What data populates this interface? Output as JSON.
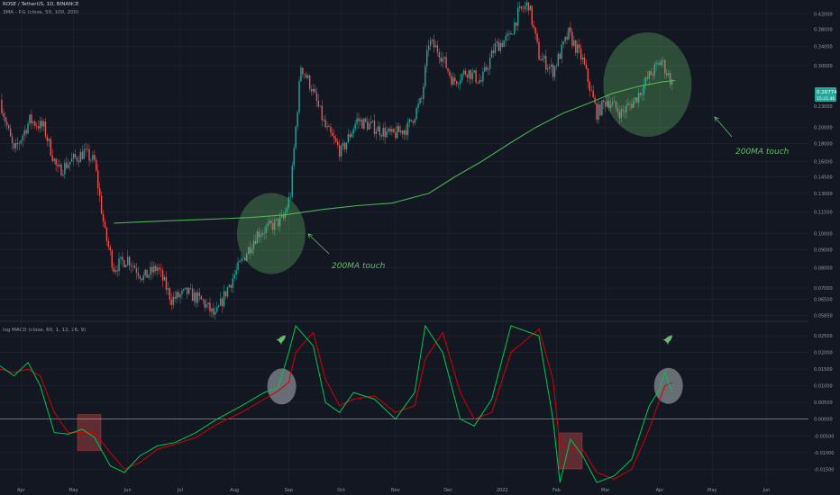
{
  "header": {
    "symbol": "ROSE / TetherUS, 1D, BINANCE",
    "ma_indicator": "3MA - RG (close, 50, 100, 200)",
    "macd_indicator": "log MACD (close, 60, 1, 12, 26, 9)",
    "currency": "USDT"
  },
  "price_tag": {
    "price": "0.26774",
    "countdown": "15:21:46"
  },
  "colors": {
    "background": "#131722",
    "bull": "#26a69a",
    "bear": "#ef5350",
    "ma200": "#4caf50",
    "highlight_green": "#66bb6a",
    "macd_line": "#00c853",
    "signal_line": "#d50000"
  },
  "annotations": [
    {
      "text": "200MA touch"
    },
    {
      "text": "200MA touch"
    }
  ],
  "chart_data": [
    {
      "type": "candlestick",
      "y_scale": "log",
      "y_ticks": [
        "0.42000",
        "0.38000",
        "0.34000",
        "0.30000",
        "0.23000",
        "0.20000",
        "0.18000",
        "0.16000",
        "0.14500",
        "0.13000",
        "0.11500",
        "0.10000",
        "0.09000",
        "0.08000",
        "0.07000",
        "0.06500",
        "0.05850"
      ],
      "x_ticks": [
        "Apr",
        "May",
        "Jun",
        "Jul",
        "Aug",
        "Sep",
        "Oct",
        "Nov",
        "Dec",
        "2022",
        "Feb",
        "Mar",
        "Apr",
        "May",
        "Jun"
      ],
      "price_path": [
        {
          "x": "2021-03-20",
          "y": 0.24
        },
        {
          "x": "2021-03-28",
          "y": 0.17
        },
        {
          "x": "2021-04-06",
          "y": 0.21
        },
        {
          "x": "2021-04-14",
          "y": 0.2
        },
        {
          "x": "2021-04-22",
          "y": 0.15
        },
        {
          "x": "2021-04-29",
          "y": 0.16
        },
        {
          "x": "2021-05-07",
          "y": 0.17
        },
        {
          "x": "2021-05-13",
          "y": 0.16
        },
        {
          "x": "2021-05-19",
          "y": 0.1
        },
        {
          "x": "2021-05-24",
          "y": 0.08
        },
        {
          "x": "2021-06-01",
          "y": 0.085
        },
        {
          "x": "2021-06-10",
          "y": 0.075
        },
        {
          "x": "2021-06-18",
          "y": 0.08
        },
        {
          "x": "2021-06-26",
          "y": 0.065
        },
        {
          "x": "2021-07-05",
          "y": 0.068
        },
        {
          "x": "2021-07-14",
          "y": 0.064
        },
        {
          "x": "2021-07-21",
          "y": 0.058
        },
        {
          "x": "2021-07-28",
          "y": 0.07
        },
        {
          "x": "2021-08-06",
          "y": 0.085
        },
        {
          "x": "2021-08-14",
          "y": 0.1
        },
        {
          "x": "2021-08-22",
          "y": 0.105
        },
        {
          "x": "2021-08-29",
          "y": 0.11
        },
        {
          "x": "2021-09-02",
          "y": 0.13
        },
        {
          "x": "2021-09-05",
          "y": 0.2
        },
        {
          "x": "2021-09-08",
          "y": 0.3
        },
        {
          "x": "2021-09-14",
          "y": 0.26
        },
        {
          "x": "2021-09-22",
          "y": 0.2
        },
        {
          "x": "2021-10-01",
          "y": 0.17
        },
        {
          "x": "2021-10-10",
          "y": 0.21
        },
        {
          "x": "2021-10-20",
          "y": 0.2
        },
        {
          "x": "2021-10-30",
          "y": 0.19
        },
        {
          "x": "2021-11-08",
          "y": 0.2
        },
        {
          "x": "2021-11-16",
          "y": 0.24
        },
        {
          "x": "2021-11-20",
          "y": 0.35
        },
        {
          "x": "2021-11-26",
          "y": 0.33
        },
        {
          "x": "2021-12-04",
          "y": 0.27
        },
        {
          "x": "2021-12-12",
          "y": 0.29
        },
        {
          "x": "2021-12-20",
          "y": 0.27
        },
        {
          "x": "2021-12-28",
          "y": 0.34
        },
        {
          "x": "2022-01-05",
          "y": 0.36
        },
        {
          "x": "2022-01-10",
          "y": 0.42
        },
        {
          "x": "2022-01-16",
          "y": 0.45
        },
        {
          "x": "2022-01-22",
          "y": 0.32
        },
        {
          "x": "2022-01-30",
          "y": 0.29
        },
        {
          "x": "2022-02-08",
          "y": 0.37
        },
        {
          "x": "2022-02-16",
          "y": 0.31
        },
        {
          "x": "2022-02-24",
          "y": 0.22
        },
        {
          "x": "2022-03-02",
          "y": 0.24
        },
        {
          "x": "2022-03-10",
          "y": 0.22
        },
        {
          "x": "2022-03-18",
          "y": 0.24
        },
        {
          "x": "2022-03-26",
          "y": 0.28
        },
        {
          "x": "2022-04-02",
          "y": 0.31
        },
        {
          "x": "2022-04-08",
          "y": 0.26774
        }
      ],
      "ma200": [
        {
          "x": "2021-05-24",
          "y": 0.107
        },
        {
          "x": "2021-06-10",
          "y": 0.108
        },
        {
          "x": "2021-07-01",
          "y": 0.109
        },
        {
          "x": "2021-07-21",
          "y": 0.11
        },
        {
          "x": "2021-08-10",
          "y": 0.111
        },
        {
          "x": "2021-08-30",
          "y": 0.113
        },
        {
          "x": "2021-09-20",
          "y": 0.117
        },
        {
          "x": "2021-10-10",
          "y": 0.12
        },
        {
          "x": "2021-10-30",
          "y": 0.122
        },
        {
          "x": "2021-11-20",
          "y": 0.13
        },
        {
          "x": "2021-12-05",
          "y": 0.145
        },
        {
          "x": "2021-12-20",
          "y": 0.16
        },
        {
          "x": "2022-01-05",
          "y": 0.18
        },
        {
          "x": "2022-01-20",
          "y": 0.2
        },
        {
          "x": "2022-02-05",
          "y": 0.22
        },
        {
          "x": "2022-02-20",
          "y": 0.235
        },
        {
          "x": "2022-03-05",
          "y": 0.25
        },
        {
          "x": "2022-03-20",
          "y": 0.262
        },
        {
          "x": "2022-04-03",
          "y": 0.27
        },
        {
          "x": "2022-04-10",
          "y": 0.272
        }
      ],
      "highlights": [
        {
          "shape": "circle",
          "x": "2021-08-22",
          "y": 0.1
        },
        {
          "shape": "circle",
          "x": "2022-03-25",
          "y": 0.265
        }
      ]
    },
    {
      "type": "line",
      "title": "log MACD (close, 60, 1, 12, 26, 9)",
      "y_ticks": [
        "0.02500",
        "0.02000",
        "0.01500",
        "0.01000",
        "0.00500",
        "0.00000",
        "-0.00500",
        "-0.01000",
        "-0.01500"
      ],
      "ylim": [
        -0.0195,
        0.028
      ],
      "series": [
        {
          "values": [
            {
              "x": "2021-03-20",
              "y": 0.016
            },
            {
              "x": "2021-03-28",
              "y": 0.013
            },
            {
              "x": "2021-04-05",
              "y": 0.017
            },
            {
              "x": "2021-04-12",
              "y": 0.01
            },
            {
              "x": "2021-04-20",
              "y": -0.004
            },
            {
              "x": "2021-04-28",
              "y": -0.0045
            },
            {
              "x": "2021-05-06",
              "y": -0.003
            },
            {
              "x": "2021-05-13",
              "y": -0.0055
            },
            {
              "x": "2021-05-22",
              "y": -0.014
            },
            {
              "x": "2021-05-30",
              "y": -0.016
            },
            {
              "x": "2021-06-08",
              "y": -0.011
            },
            {
              "x": "2021-06-18",
              "y": -0.008
            },
            {
              "x": "2021-06-28",
              "y": -0.007
            },
            {
              "x": "2021-07-10",
              "y": -0.004
            },
            {
              "x": "2021-07-22",
              "y": 0.0
            },
            {
              "x": "2021-08-05",
              "y": 0.004
            },
            {
              "x": "2021-08-18",
              "y": 0.008
            },
            {
              "x": "2021-08-26",
              "y": 0.0095
            },
            {
              "x": "2021-09-01",
              "y": 0.02
            },
            {
              "x": "2021-09-05",
              "y": 0.028
            },
            {
              "x": "2021-09-15",
              "y": 0.022
            },
            {
              "x": "2021-09-22",
              "y": 0.005
            },
            {
              "x": "2021-09-30",
              "y": 0.002
            },
            {
              "x": "2021-10-08",
              "y": 0.008
            },
            {
              "x": "2021-10-20",
              "y": 0.006
            },
            {
              "x": "2021-11-01",
              "y": 0.0
            },
            {
              "x": "2021-11-12",
              "y": 0.008
            },
            {
              "x": "2021-11-18",
              "y": 0.028
            },
            {
              "x": "2021-11-28",
              "y": 0.02
            },
            {
              "x": "2021-12-08",
              "y": 0.0
            },
            {
              "x": "2021-12-16",
              "y": -0.002
            },
            {
              "x": "2021-12-26",
              "y": 0.006
            },
            {
              "x": "2022-01-06",
              "y": 0.028
            },
            {
              "x": "2022-01-22",
              "y": 0.025
            },
            {
              "x": "2022-01-30",
              "y": 0.0
            },
            {
              "x": "2022-02-03",
              "y": -0.019
            },
            {
              "x": "2022-02-09",
              "y": -0.006
            },
            {
              "x": "2022-02-16",
              "y": -0.011
            },
            {
              "x": "2022-02-24",
              "y": -0.019
            },
            {
              "x": "2022-03-06",
              "y": -0.017
            },
            {
              "x": "2022-03-16",
              "y": -0.012
            },
            {
              "x": "2022-03-26",
              "y": 0.004
            },
            {
              "x": "2022-04-01",
              "y": 0.009
            },
            {
              "x": "2022-04-04",
              "y": 0.014
            },
            {
              "x": "2022-04-08",
              "y": 0.008
            }
          ]
        },
        {
          "values": [
            {
              "x": "2021-03-20",
              "y": 0.015
            },
            {
              "x": "2021-03-28",
              "y": 0.014
            },
            {
              "x": "2021-04-05",
              "y": 0.015
            },
            {
              "x": "2021-04-12",
              "y": 0.013
            },
            {
              "x": "2021-04-20",
              "y": 0.002
            },
            {
              "x": "2021-04-28",
              "y": -0.004
            },
            {
              "x": "2021-05-06",
              "y": -0.004
            },
            {
              "x": "2021-05-13",
              "y": -0.004
            },
            {
              "x": "2021-05-22",
              "y": -0.01
            },
            {
              "x": "2021-05-30",
              "y": -0.015
            },
            {
              "x": "2021-06-08",
              "y": -0.013
            },
            {
              "x": "2021-06-18",
              "y": -0.009
            },
            {
              "x": "2021-06-28",
              "y": -0.0075
            },
            {
              "x": "2021-07-10",
              "y": -0.0055
            },
            {
              "x": "2021-07-22",
              "y": -0.0015
            },
            {
              "x": "2021-08-05",
              "y": 0.002
            },
            {
              "x": "2021-08-18",
              "y": 0.006
            },
            {
              "x": "2021-08-26",
              "y": 0.0085
            },
            {
              "x": "2021-09-01",
              "y": 0.011
            },
            {
              "x": "2021-09-05",
              "y": 0.02
            },
            {
              "x": "2021-09-15",
              "y": 0.026
            },
            {
              "x": "2021-09-22",
              "y": 0.012
            },
            {
              "x": "2021-09-30",
              "y": 0.004
            },
            {
              "x": "2021-10-08",
              "y": 0.006
            },
            {
              "x": "2021-10-20",
              "y": 0.007
            },
            {
              "x": "2021-11-01",
              "y": 0.002
            },
            {
              "x": "2021-11-12",
              "y": 0.004
            },
            {
              "x": "2021-11-18",
              "y": 0.018
            },
            {
              "x": "2021-11-28",
              "y": 0.026
            },
            {
              "x": "2021-12-08",
              "y": 0.008
            },
            {
              "x": "2021-12-16",
              "y": 0.0
            },
            {
              "x": "2021-12-26",
              "y": 0.002
            },
            {
              "x": "2022-01-06",
              "y": 0.02
            },
            {
              "x": "2022-01-22",
              "y": 0.027
            },
            {
              "x": "2022-01-30",
              "y": 0.012
            },
            {
              "x": "2022-02-03",
              "y": -0.008
            },
            {
              "x": "2022-02-09",
              "y": -0.009
            },
            {
              "x": "2022-02-16",
              "y": -0.009
            },
            {
              "x": "2022-02-24",
              "y": -0.016
            },
            {
              "x": "2022-03-06",
              "y": -0.018
            },
            {
              "x": "2022-03-16",
              "y": -0.015
            },
            {
              "x": "2022-03-26",
              "y": -0.003
            },
            {
              "x": "2022-04-01",
              "y": 0.006
            },
            {
              "x": "2022-04-04",
              "y": 0.01
            },
            {
              "x": "2022-04-08",
              "y": 0.011
            }
          ]
        }
      ],
      "zero_line": 0.0,
      "highlights": [
        {
          "shape": "square",
          "x": "2021-05-10",
          "y": -0.004
        },
        {
          "shape": "circle",
          "x": "2021-08-28",
          "y": 0.0098
        },
        {
          "shape": "square",
          "x": "2022-02-09",
          "y": -0.0095
        },
        {
          "shape": "circle",
          "x": "2022-04-06",
          "y": 0.01
        }
      ],
      "markers": [
        {
          "icon": "rocket-icon",
          "x": "2021-08-28",
          "y": 0.024
        },
        {
          "icon": "rocket-icon",
          "x": "2022-04-06",
          "y": 0.024
        }
      ]
    }
  ]
}
